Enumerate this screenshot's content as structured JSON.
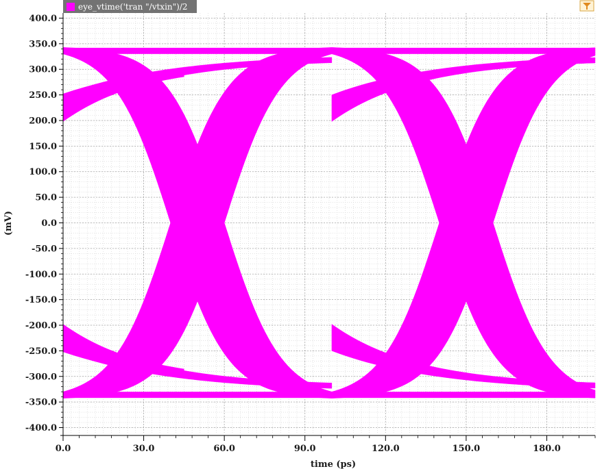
{
  "chart_data": {
    "type": "line",
    "title": "",
    "xlabel": "time (ps)",
    "ylabel": "(mV)",
    "xlim": [
      0,
      198
    ],
    "ylim": [
      -410,
      410
    ],
    "x_ticks": [
      0,
      30,
      60,
      90,
      120,
      150,
      180
    ],
    "x_tick_labels": [
      "0.0",
      "30.0",
      "60.0",
      "90.0",
      "120.0",
      "150.0",
      "180.0"
    ],
    "y_ticks": [
      400,
      350,
      300,
      250,
      200,
      150,
      100,
      50,
      0,
      -50,
      -100,
      -150,
      -200,
      -250,
      -300,
      -350,
      -400
    ],
    "y_tick_labels": [
      "400.0",
      "350.0",
      "300.0",
      "250.0",
      "200.0",
      "150.0",
      "100.0",
      "50.0",
      "0.0",
      "-50.0",
      "-100.0",
      "-150.0",
      "-200.0",
      "-250.0",
      "-300.0",
      "-350.0",
      "-400.0"
    ],
    "grid": true,
    "legend": {
      "position": "top-left",
      "entries": [
        {
          "name": "eye_vtime('tran \"/vtxin\")/2",
          "color": "#ff00ff"
        }
      ]
    },
    "eye": {
      "unit_interval_ps": 100,
      "crossing_times_ps": [
        50,
        150
      ],
      "crossing_level_mV": 0,
      "eye_opening_mV": 160,
      "crossing_width_ps": 20,
      "high_rail_mV": [
        330,
        342
      ],
      "low_rail_mV": [
        -342,
        -330
      ],
      "settled_level_at_start_mV": [
        200,
        252
      ]
    },
    "series": [
      {
        "name": "eye_vtime('tran \"/vtxin\")/2",
        "color": "#ff00ff",
        "note": "eye diagram traces (band edges, mV)",
        "bands": [
          {
            "id": "rise-transition",
            "upper": [
              [
                0,
                250
              ],
              [
                10,
                265
              ],
              [
                30,
                280
              ],
              [
                45,
                290
              ],
              [
                60,
                300
              ],
              [
                80,
                315
              ],
              [
                100,
                325
              ],
              [
                120,
                330
              ],
              [
                150,
                332
              ],
              [
                198,
                330
              ]
            ],
            "lower": [
              [
                0,
                200
              ],
              [
                5,
                215
              ],
              [
                15,
                230
              ],
              [
                25,
                230
              ],
              [
                30,
                228
              ]
            ]
          },
          {
            "id": "fall-transition",
            "upper": [
              [
                0,
                -200
              ],
              [
                10,
                -225
              ],
              [
                30,
                -280
              ],
              [
                45,
                -288
              ],
              [
                60,
                -300
              ],
              [
                80,
                -312
              ],
              [
                100,
                -322
              ],
              [
                120,
                -330
              ],
              [
                150,
                -332
              ],
              [
                198,
                -330
              ]
            ],
            "lower": [
              [
                0,
                -250
              ],
              [
                10,
                -262
              ],
              [
                30,
                -280
              ]
            ]
          },
          {
            "id": "crossing-1",
            "center_ps": 50
          },
          {
            "id": "crossing-2",
            "center_ps": 150
          }
        ]
      }
    ]
  },
  "ui": {
    "filter_icon": "filter-icon"
  }
}
